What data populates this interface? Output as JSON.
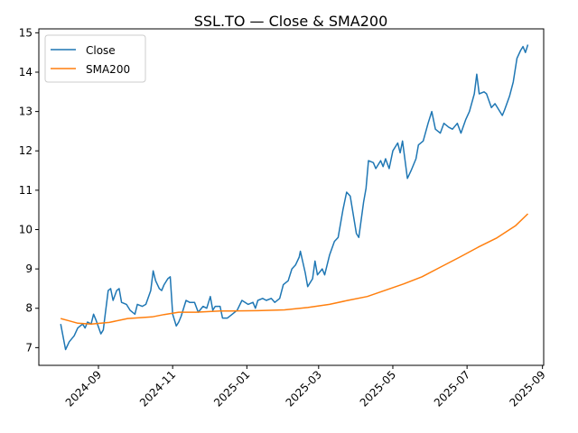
{
  "chart_data": {
    "type": "line",
    "title": "SSL.TO — Close & SMA200",
    "xlabel": "",
    "ylabel": "",
    "x_range": [
      "2024-07-14",
      "2025-09-02"
    ],
    "ylim": [
      6.55,
      15.1
    ],
    "y_ticks": [
      7,
      8,
      9,
      10,
      11,
      12,
      13,
      14,
      15
    ],
    "x_ticks": [
      "2024-09",
      "2024-11",
      "2025-01",
      "2025-03",
      "2025-05",
      "2025-07",
      "2025-09"
    ],
    "grid": false,
    "legend_position": "upper-left",
    "series": [
      {
        "name": "Close",
        "color": "#1f77b4",
        "points": [
          [
            "2024-08-01",
            7.6
          ],
          [
            "2024-08-05",
            6.95
          ],
          [
            "2024-08-08",
            7.15
          ],
          [
            "2024-08-12",
            7.3
          ],
          [
            "2024-08-15",
            7.5
          ],
          [
            "2024-08-19",
            7.6
          ],
          [
            "2024-08-21",
            7.5
          ],
          [
            "2024-08-23",
            7.65
          ],
          [
            "2024-08-26",
            7.6
          ],
          [
            "2024-08-28",
            7.85
          ],
          [
            "2024-08-30",
            7.7
          ],
          [
            "2024-09-03",
            7.35
          ],
          [
            "2024-09-05",
            7.45
          ],
          [
            "2024-09-06",
            7.7
          ],
          [
            "2024-09-09",
            8.45
          ],
          [
            "2024-09-11",
            8.5
          ],
          [
            "2024-09-13",
            8.2
          ],
          [
            "2024-09-16",
            8.45
          ],
          [
            "2024-09-18",
            8.5
          ],
          [
            "2024-09-20",
            8.15
          ],
          [
            "2024-09-24",
            8.1
          ],
          [
            "2024-09-27",
            7.95
          ],
          [
            "2024-10-01",
            7.85
          ],
          [
            "2024-10-03",
            8.1
          ],
          [
            "2024-10-07",
            8.05
          ],
          [
            "2024-10-10",
            8.1
          ],
          [
            "2024-10-14",
            8.45
          ],
          [
            "2024-10-16",
            8.95
          ],
          [
            "2024-10-18",
            8.7
          ],
          [
            "2024-10-21",
            8.5
          ],
          [
            "2024-10-23",
            8.45
          ],
          [
            "2024-10-25",
            8.6
          ],
          [
            "2024-10-28",
            8.75
          ],
          [
            "2024-10-30",
            8.8
          ],
          [
            "2024-11-01",
            7.85
          ],
          [
            "2024-11-04",
            7.55
          ],
          [
            "2024-11-06",
            7.65
          ],
          [
            "2024-11-08",
            7.8
          ],
          [
            "2024-11-12",
            8.2
          ],
          [
            "2024-11-15",
            8.15
          ],
          [
            "2024-11-19",
            8.15
          ],
          [
            "2024-11-22",
            7.9
          ],
          [
            "2024-11-26",
            8.05
          ],
          [
            "2024-11-29",
            8.0
          ],
          [
            "2024-12-02",
            8.3
          ],
          [
            "2024-12-04",
            7.95
          ],
          [
            "2024-12-06",
            8.05
          ],
          [
            "2024-12-10",
            8.05
          ],
          [
            "2024-12-12",
            7.75
          ],
          [
            "2024-12-16",
            7.75
          ],
          [
            "2024-12-20",
            7.85
          ],
          [
            "2024-12-24",
            7.95
          ],
          [
            "2024-12-28",
            8.2
          ],
          [
            "2025-01-02",
            8.1
          ],
          [
            "2025-01-06",
            8.15
          ],
          [
            "2025-01-08",
            8.0
          ],
          [
            "2025-01-10",
            8.2
          ],
          [
            "2025-01-14",
            8.25
          ],
          [
            "2025-01-17",
            8.2
          ],
          [
            "2025-01-21",
            8.25
          ],
          [
            "2025-01-24",
            8.15
          ],
          [
            "2025-01-28",
            8.25
          ],
          [
            "2025-01-31",
            8.6
          ],
          [
            "2025-02-04",
            8.7
          ],
          [
            "2025-02-07",
            9.0
          ],
          [
            "2025-02-10",
            9.1
          ],
          [
            "2025-02-13",
            9.3
          ],
          [
            "2025-02-14",
            9.45
          ],
          [
            "2025-02-18",
            8.9
          ],
          [
            "2025-02-20",
            8.55
          ],
          [
            "2025-02-24",
            8.75
          ],
          [
            "2025-02-26",
            9.2
          ],
          [
            "2025-02-28",
            8.85
          ],
          [
            "2025-03-04",
            9.0
          ],
          [
            "2025-03-06",
            8.85
          ],
          [
            "2025-03-10",
            9.35
          ],
          [
            "2025-03-14",
            9.7
          ],
          [
            "2025-03-17",
            9.8
          ],
          [
            "2025-03-21",
            10.5
          ],
          [
            "2025-03-24",
            10.95
          ],
          [
            "2025-03-27",
            10.85
          ],
          [
            "2025-04-01",
            9.9
          ],
          [
            "2025-04-03",
            9.8
          ],
          [
            "2025-04-07",
            10.7
          ],
          [
            "2025-04-09",
            11.05
          ],
          [
            "2025-04-11",
            11.75
          ],
          [
            "2025-04-15",
            11.7
          ],
          [
            "2025-04-17",
            11.55
          ],
          [
            "2025-04-21",
            11.75
          ],
          [
            "2025-04-23",
            11.6
          ],
          [
            "2025-04-25",
            11.8
          ],
          [
            "2025-04-28",
            11.55
          ],
          [
            "2025-05-01",
            12.0
          ],
          [
            "2025-05-05",
            12.2
          ],
          [
            "2025-05-07",
            11.95
          ],
          [
            "2025-05-09",
            12.25
          ],
          [
            "2025-05-13",
            11.3
          ],
          [
            "2025-05-16",
            11.5
          ],
          [
            "2025-05-20",
            11.8
          ],
          [
            "2025-05-22",
            12.15
          ],
          [
            "2025-05-26",
            12.25
          ],
          [
            "2025-05-30",
            12.7
          ],
          [
            "2025-06-02",
            13.0
          ],
          [
            "2025-06-05",
            12.55
          ],
          [
            "2025-06-09",
            12.45
          ],
          [
            "2025-06-12",
            12.7
          ],
          [
            "2025-06-16",
            12.6
          ],
          [
            "2025-06-19",
            12.55
          ],
          [
            "2025-06-23",
            12.7
          ],
          [
            "2025-06-26",
            12.45
          ],
          [
            "2025-06-30",
            12.8
          ],
          [
            "2025-07-03",
            13.0
          ],
          [
            "2025-07-07",
            13.45
          ],
          [
            "2025-07-09",
            13.95
          ],
          [
            "2025-07-11",
            13.45
          ],
          [
            "2025-07-15",
            13.5
          ],
          [
            "2025-07-17",
            13.45
          ],
          [
            "2025-07-21",
            13.1
          ],
          [
            "2025-07-24",
            13.2
          ],
          [
            "2025-07-28",
            13.0
          ],
          [
            "2025-07-30",
            12.9
          ],
          [
            "2025-08-01",
            13.05
          ],
          [
            "2025-08-05",
            13.4
          ],
          [
            "2025-08-08",
            13.75
          ],
          [
            "2025-08-11",
            14.35
          ],
          [
            "2025-08-14",
            14.55
          ],
          [
            "2025-08-16",
            14.65
          ],
          [
            "2025-08-18",
            14.5
          ],
          [
            "2025-08-20",
            14.7
          ]
        ]
      },
      {
        "name": "SMA200",
        "color": "#ff7f0e",
        "points": [
          [
            "2024-08-01",
            7.74
          ],
          [
            "2024-08-08",
            7.68
          ],
          [
            "2024-08-15",
            7.62
          ],
          [
            "2024-08-26",
            7.6
          ],
          [
            "2024-09-10",
            7.64
          ],
          [
            "2024-09-25",
            7.74
          ],
          [
            "2024-10-15",
            7.78
          ],
          [
            "2024-10-25",
            7.84
          ],
          [
            "2024-11-06",
            7.9
          ],
          [
            "2024-11-20",
            7.9
          ],
          [
            "2024-12-10",
            7.93
          ],
          [
            "2025-01-10",
            7.94
          ],
          [
            "2025-02-01",
            7.96
          ],
          [
            "2025-02-20",
            8.02
          ],
          [
            "2025-03-10",
            8.1
          ],
          [
            "2025-03-25",
            8.2
          ],
          [
            "2025-04-10",
            8.3
          ],
          [
            "2025-04-25",
            8.46
          ],
          [
            "2025-05-10",
            8.62
          ],
          [
            "2025-05-25",
            8.8
          ],
          [
            "2025-06-10",
            9.06
          ],
          [
            "2025-06-25",
            9.3
          ],
          [
            "2025-07-10",
            9.55
          ],
          [
            "2025-07-25",
            9.78
          ],
          [
            "2025-08-10",
            10.1
          ],
          [
            "2025-08-20",
            10.4
          ]
        ]
      }
    ]
  }
}
